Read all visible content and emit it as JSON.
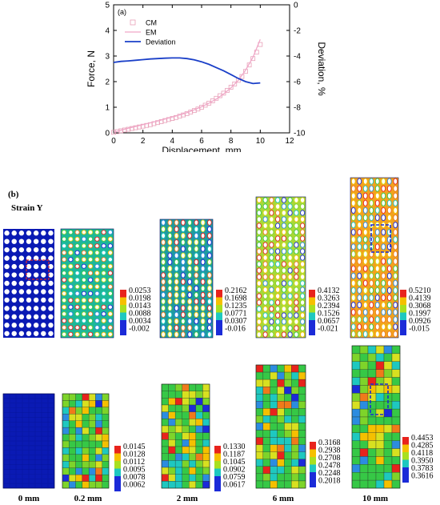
{
  "chart_data": {
    "type": "line",
    "panel_label": "(a)",
    "xlabel": "Displacement, mm",
    "ylabel_left": "Force, N",
    "ylabel_right": "Deviation, %",
    "xlim": [
      0,
      12
    ],
    "ylim_left": [
      0,
      5
    ],
    "ylim_right": [
      -10,
      0
    ],
    "xticks": [
      0,
      2,
      4,
      6,
      8,
      10,
      12
    ],
    "yticks_left": [
      0,
      1,
      2,
      3,
      4,
      5
    ],
    "yticks_right": [
      0,
      -2,
      -4,
      -6,
      -8,
      -10
    ],
    "series": [
      {
        "name": "CM",
        "axis": "left",
        "color": "#e8a0b8",
        "marker": "square",
        "x": [
          0,
          0.25,
          0.5,
          0.75,
          1,
          1.25,
          1.5,
          1.75,
          2,
          2.25,
          2.5,
          2.75,
          3,
          3.25,
          3.5,
          3.75,
          4,
          4.25,
          4.5,
          4.75,
          5,
          5.25,
          5.5,
          5.75,
          6,
          6.25,
          6.5,
          6.75,
          7,
          7.25,
          7.5,
          7.75,
          8,
          8.25,
          8.5,
          8.75,
          9,
          9.25,
          9.5,
          9.75,
          10
        ],
        "y": [
          0.02,
          0.05,
          0.08,
          0.11,
          0.14,
          0.17,
          0.2,
          0.23,
          0.26,
          0.29,
          0.32,
          0.36,
          0.4,
          0.44,
          0.48,
          0.52,
          0.56,
          0.6,
          0.65,
          0.7,
          0.75,
          0.81,
          0.87,
          0.93,
          1.0,
          1.08,
          1.16,
          1.25,
          1.35,
          1.45,
          1.55,
          1.66,
          1.78,
          1.91,
          2.05,
          2.2,
          2.4,
          2.65,
          2.9,
          3.15,
          3.45
        ]
      },
      {
        "name": "EM",
        "axis": "left",
        "color": "#f0a8c8",
        "x": [
          0,
          0.5,
          1,
          1.5,
          2,
          2.5,
          3,
          3.5,
          4,
          4.5,
          5,
          5.5,
          6,
          6.5,
          7,
          7.5,
          8,
          8.5,
          9,
          9.5,
          10
        ],
        "y": [
          0.02,
          0.1,
          0.18,
          0.25,
          0.32,
          0.39,
          0.46,
          0.54,
          0.62,
          0.7,
          0.79,
          0.9,
          1.02,
          1.16,
          1.32,
          1.52,
          1.76,
          2.05,
          2.45,
          2.95,
          3.65
        ]
      },
      {
        "name": "Deviation",
        "axis": "right",
        "color": "#1a3fc8",
        "x": [
          0,
          0.5,
          1,
          1.5,
          2,
          2.5,
          3,
          3.5,
          4,
          4.5,
          5,
          5.5,
          6,
          6.5,
          7,
          7.5,
          8,
          8.5,
          9,
          9.5,
          10
        ],
        "y": [
          -4.5,
          -4.42,
          -4.38,
          -4.33,
          -4.28,
          -4.23,
          -4.2,
          -4.17,
          -4.15,
          -4.15,
          -4.2,
          -4.3,
          -4.45,
          -4.65,
          -4.9,
          -5.15,
          -5.45,
          -5.75,
          -6.0,
          -6.15,
          -6.1
        ]
      }
    ]
  },
  "panel_b": {
    "label": "(b)",
    "title": "Strain Y",
    "row1": [
      {
        "colorbar": []
      },
      {
        "colorbar": [
          "0.0253",
          "0.0198",
          "0.0143",
          "0.0088",
          "0.0034",
          "-0.002"
        ]
      },
      {
        "colorbar": [
          "0.2162",
          "0.1698",
          "0.1235",
          "0.0771",
          "0.0307",
          "-0.016"
        ]
      },
      {
        "colorbar": [
          "0.4132",
          "0.3263",
          "0.2394",
          "0.1526",
          "0.0657",
          "-0.021"
        ]
      },
      {
        "colorbar": [
          "0.5210",
          "0.4139",
          "0.3068",
          "0.1997",
          "0.0926",
          "-0.015"
        ]
      }
    ],
    "row2": [
      {
        "colorbar": []
      },
      {
        "colorbar": [
          "0.0145",
          "0.0128",
          "0.0112",
          "0.0095",
          "0.0078",
          "0.0062"
        ]
      },
      {
        "colorbar": [
          "0.1330",
          "0.1187",
          "0.1045",
          "0.0902",
          "0.0759",
          "0.0617"
        ]
      },
      {
        "colorbar": [
          "0.3168",
          "0.2938",
          "0.2708",
          "0.2478",
          "0.2248",
          "0.2018"
        ]
      },
      {
        "colorbar": [
          "0.4453",
          "0.4285",
          "0.4118",
          "0.3950",
          "0.3783",
          "0.3616"
        ]
      }
    ],
    "displacements": [
      "0 mm",
      "0.2 mm",
      "2 mm",
      "6 mm",
      "10 mm"
    ],
    "colorbar_colors": [
      "#e8231c",
      "#f5c000",
      "#a8e020",
      "#1ec8c0",
      "#1b2bd8"
    ],
    "base_color": "#0a1ab4"
  }
}
